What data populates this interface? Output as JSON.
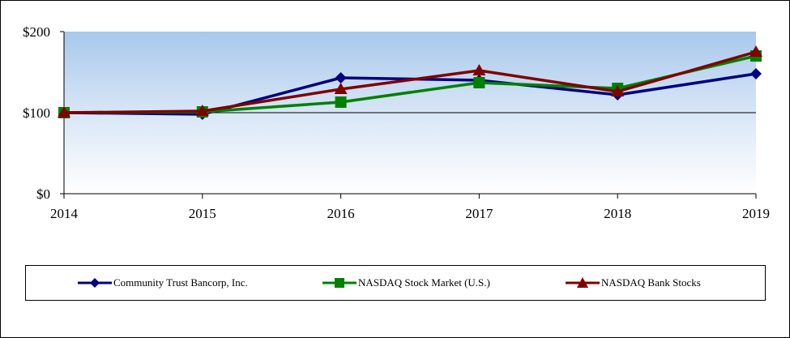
{
  "chart_data": {
    "type": "line",
    "title": "",
    "xlabel": "",
    "ylabel": "",
    "categories": [
      "2014",
      "2015",
      "2016",
      "2017",
      "2018",
      "2019"
    ],
    "ylim": [
      0,
      200
    ],
    "yticks": [
      0,
      100,
      200
    ],
    "ytick_labels": [
      "$0",
      "$100",
      "$200"
    ],
    "grid": "horizontal lines at $100",
    "legend_position": "bottom",
    "series": [
      {
        "name": "Community Trust Bancorp, Inc.",
        "color": "#000080",
        "marker": "diamond",
        "values": [
          100,
          98,
          143,
          140,
          122,
          148
        ]
      },
      {
        "name": "NASDAQ Stock Market (U.S.)",
        "color": "#008000",
        "marker": "square",
        "values": [
          100,
          101,
          113,
          137,
          130,
          170
        ]
      },
      {
        "name": "NASDAQ Bank Stocks",
        "color": "#800000",
        "marker": "triangle",
        "values": [
          100,
          102,
          129,
          152,
          126,
          175
        ]
      }
    ]
  }
}
